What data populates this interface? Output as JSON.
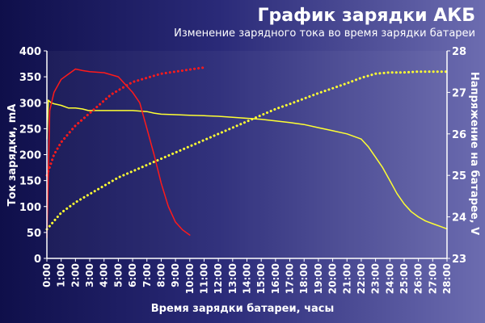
{
  "chart_data": {
    "type": "line",
    "title": "График зарядки АКБ",
    "subtitle": "Изменение зарядного тока во время зарядки батареи",
    "xlabel": "Время зарядки батареи, часы",
    "ylabel": "Ток зарядки, mA",
    "y2label": "Напряжение на батарее, V",
    "xlim": [
      0,
      28
    ],
    "ylim": [
      0,
      400
    ],
    "y2lim": [
      23,
      28
    ],
    "grid": false,
    "x_ticks": [
      "0:00",
      "1:00",
      "2:00",
      "3:00",
      "4:00",
      "5:00",
      "6:00",
      "7:00",
      "8:00",
      "9:00",
      "10:00",
      "11:00",
      "12:00",
      "13:00",
      "14:00",
      "15:00",
      "16:00",
      "17:00",
      "18:00",
      "19:00",
      "20:00",
      "21:00",
      "22:00",
      "23:00",
      "24:00",
      "25:00",
      "26:00",
      "27:00",
      "28:00"
    ],
    "y_ticks": [
      0,
      50,
      100,
      150,
      200,
      250,
      300,
      350,
      400
    ],
    "y2_ticks": [
      23,
      24,
      25,
      26,
      27,
      28
    ],
    "series": [
      {
        "color": "#ffff33",
        "axis": "left",
        "style": "solid",
        "x": [
          0,
          0.1,
          0.3,
          0.5,
          1.0,
          1.5,
          2.0,
          2.5,
          2.9,
          3.5,
          4.0,
          5.0,
          6.0,
          7.0,
          7.5,
          8.0,
          9.0,
          10.0,
          11.0,
          12.0,
          13.0,
          14.0,
          15.0,
          16.0,
          17.0,
          18.0,
          19.0,
          20.0,
          21.0,
          22.0,
          22.5,
          23.0,
          23.5,
          24.0,
          24.5,
          25.0,
          25.5,
          26.0,
          26.5,
          27.0,
          27.5,
          28.0
        ],
        "y": [
          230,
          305,
          300,
          298,
          295,
          290,
          290,
          288,
          285,
          285,
          285,
          285,
          285,
          283,
          280,
          278,
          277,
          276,
          275,
          274,
          272,
          270,
          268,
          265,
          262,
          258,
          252,
          246,
          240,
          230,
          215,
          195,
          175,
          150,
          125,
          105,
          90,
          80,
          72,
          67,
          62,
          57
        ]
      },
      {
        "color": "#ff1a1a",
        "axis": "left",
        "style": "solid",
        "x": [
          0,
          0.2,
          0.5,
          1.0,
          1.5,
          2.0,
          2.5,
          3.0,
          4.0,
          5.0,
          5.5,
          6.0,
          6.5,
          7.0,
          7.5,
          8.0,
          8.5,
          9.0,
          9.5,
          10.0
        ],
        "y": [
          40,
          285,
          320,
          345,
          355,
          365,
          362,
          360,
          358,
          350,
          335,
          320,
          300,
          250,
          200,
          145,
          100,
          70,
          55,
          45
        ]
      },
      {
        "color": "#ff1a1a",
        "axis": "right",
        "style": "dotted",
        "x": [
          0,
          0.5,
          1.0,
          1.5,
          2.0,
          2.5,
          3.0,
          3.5,
          4.0,
          4.5,
          5.0,
          5.5,
          6.0,
          6.5,
          7.0,
          7.5,
          8.0,
          9.0,
          10.0,
          11.0
        ],
        "y": [
          25.0,
          25.5,
          25.8,
          26.0,
          26.2,
          26.35,
          26.5,
          26.65,
          26.8,
          26.95,
          27.05,
          27.15,
          27.25,
          27.3,
          27.35,
          27.4,
          27.45,
          27.5,
          27.55,
          27.6
        ]
      },
      {
        "color": "#ffff33",
        "axis": "right",
        "style": "dotted",
        "x": [
          0,
          0.5,
          1.0,
          2.0,
          3.0,
          4.0,
          5.0,
          6.0,
          7.0,
          8.0,
          9.0,
          10.0,
          11.0,
          12.0,
          13.0,
          14.0,
          15.0,
          16.0,
          17.0,
          18.0,
          19.0,
          20.0,
          21.0,
          22.0,
          23.0,
          24.0,
          25.0,
          26.0,
          27.0,
          28.0
        ],
        "y": [
          23.7,
          23.9,
          24.1,
          24.35,
          24.55,
          24.75,
          24.95,
          25.1,
          25.25,
          25.4,
          25.55,
          25.7,
          25.85,
          26.0,
          26.15,
          26.3,
          26.45,
          26.6,
          26.72,
          26.85,
          26.98,
          27.1,
          27.22,
          27.35,
          27.45,
          27.48,
          27.48,
          27.5,
          27.5,
          27.5
        ]
      }
    ]
  }
}
